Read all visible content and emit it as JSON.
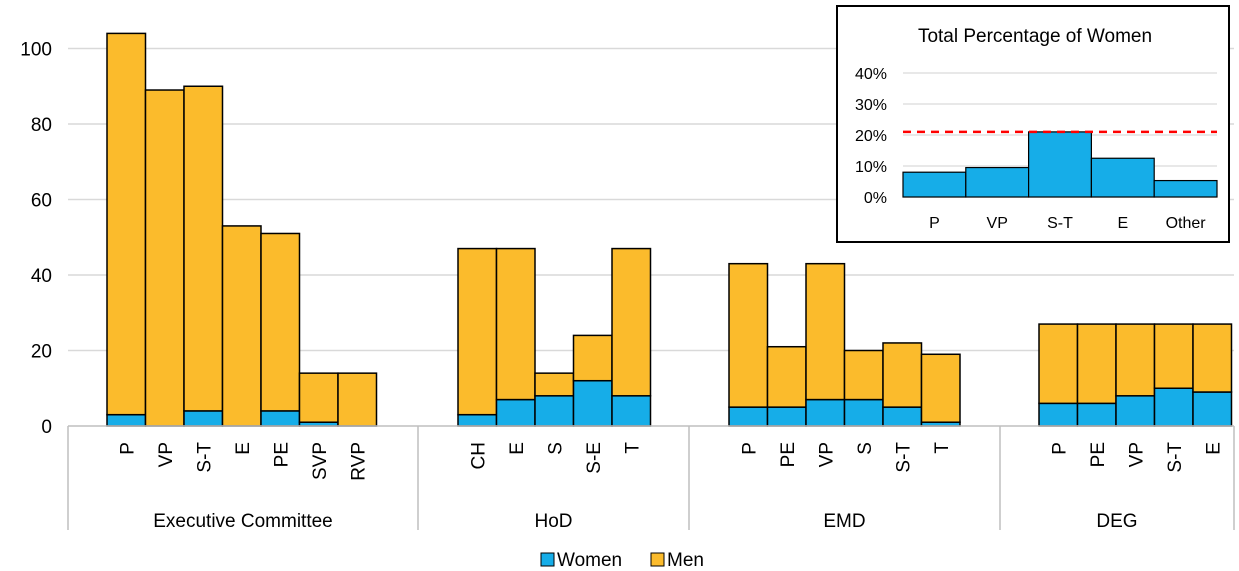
{
  "chart_data": [
    {
      "type": "bar",
      "stacked": true,
      "title": "",
      "xlabel": "",
      "ylabel": "",
      "ylim": [
        0,
        110
      ],
      "yticks": [
        0,
        20,
        40,
        60,
        80,
        100
      ],
      "grid": true,
      "legend_position": "bottom-center",
      "colors": {
        "Women": "#16ade8",
        "Men": "#fbbb2c"
      },
      "legend": [
        "Women",
        "Men"
      ],
      "groups": [
        {
          "name": "Executive Committee",
          "categories": [
            "P",
            "VP",
            "S-T",
            "E",
            "PE",
            "SVP",
            "RVP"
          ],
          "series": [
            {
              "name": "Women",
              "values": [
                3,
                0,
                4,
                0,
                4,
                1,
                0
              ]
            },
            {
              "name": "Men",
              "values": [
                101,
                89,
                86,
                53,
                47,
                13,
                14
              ]
            }
          ]
        },
        {
          "name": "HoD",
          "categories": [
            "CH",
            "E",
            "S",
            "S-E",
            "T"
          ],
          "series": [
            {
              "name": "Women",
              "values": [
                3,
                7,
                8,
                12,
                8
              ]
            },
            {
              "name": "Men",
              "values": [
                44,
                40,
                6,
                12,
                39
              ]
            }
          ]
        },
        {
          "name": "EMD",
          "categories": [
            "P",
            "PE",
            "VP",
            "S",
            "S-T",
            "T"
          ],
          "series": [
            {
              "name": "Women",
              "values": [
                5,
                5,
                7,
                7,
                5,
                1
              ]
            },
            {
              "name": "Men",
              "values": [
                38,
                16,
                36,
                13,
                17,
                18
              ]
            }
          ]
        },
        {
          "name": "DEG",
          "categories": [
            "P",
            "PE",
            "VP",
            "S-T",
            "E"
          ],
          "series": [
            {
              "name": "Women",
              "values": [
                6,
                6,
                8,
                10,
                9
              ]
            },
            {
              "name": "Men",
              "values": [
                21,
                21,
                19,
                17,
                18
              ]
            }
          ]
        }
      ]
    },
    {
      "type": "bar",
      "title": "Total Percentage of Women",
      "categories": [
        "P",
        "VP",
        "S-T",
        "E",
        "Other"
      ],
      "values": [
        8,
        9.5,
        21,
        12.5,
        5.3
      ],
      "ylim": [
        0,
        40
      ],
      "yticks": [
        "0%",
        "10%",
        "20%",
        "30%",
        "40%"
      ],
      "ytick_values": [
        0,
        10,
        20,
        30,
        40
      ],
      "reference_line": {
        "value": 21,
        "style": "dashed",
        "color": "#ff0000"
      },
      "color": "#16ade8",
      "grid": true
    }
  ]
}
